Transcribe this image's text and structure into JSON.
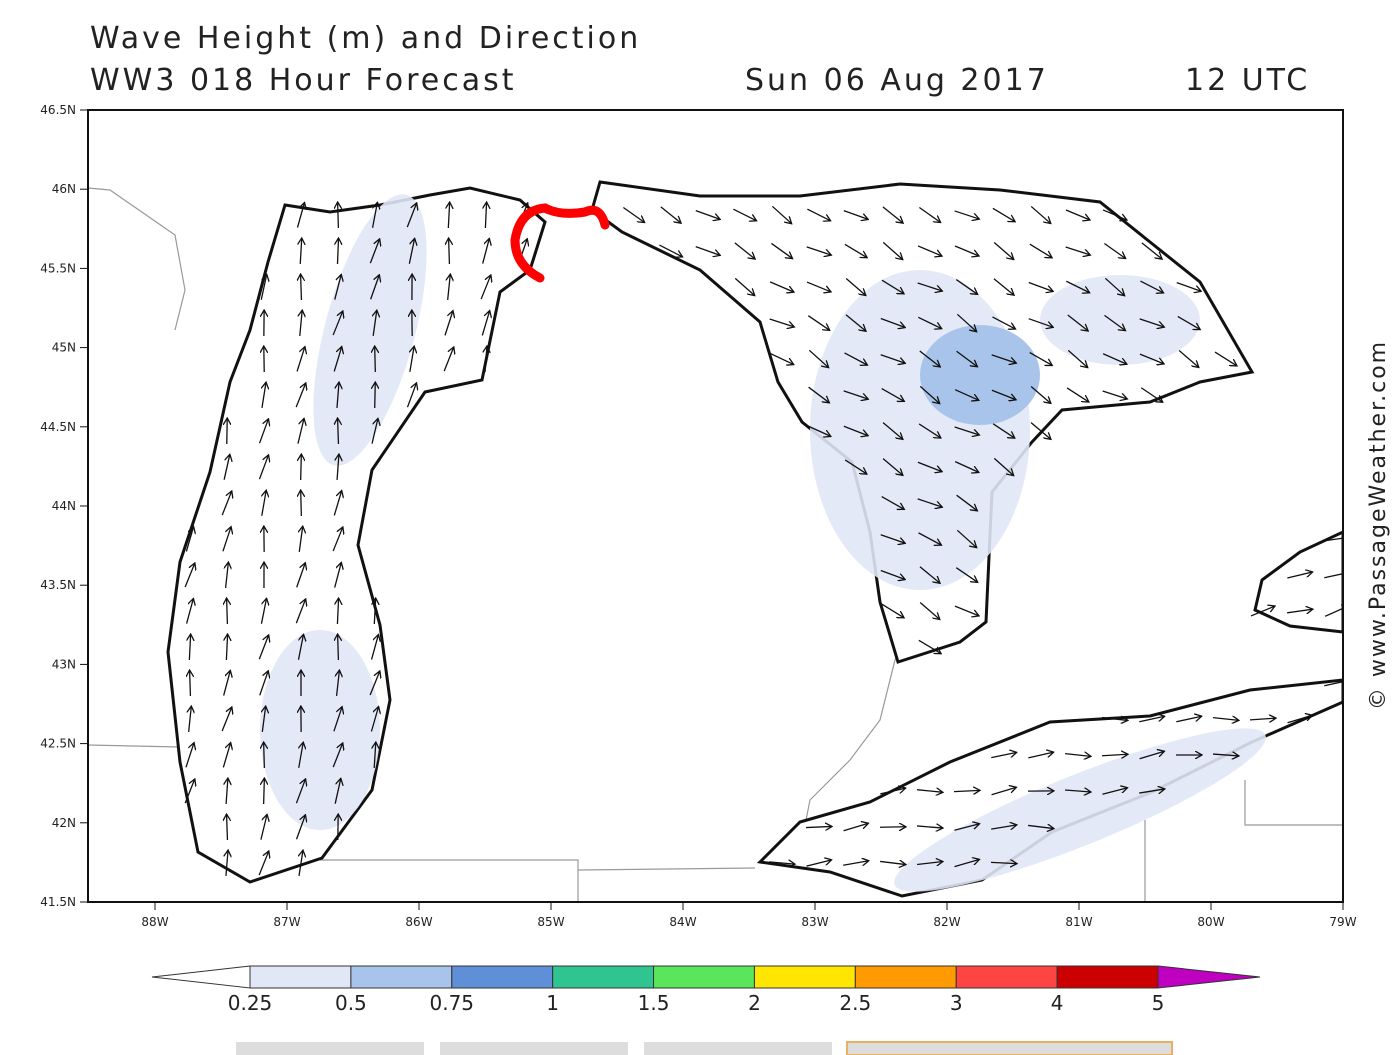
{
  "header": {
    "title": "Wave Height (m) and Direction",
    "model": "WW3 018 Hour Forecast",
    "date": "Sun 06 Aug 2017",
    "time": "12 UTC"
  },
  "map": {
    "lat_labels": [
      "46.5N",
      "46N",
      "45.5N",
      "45N",
      "44.5N",
      "44N",
      "43.5N",
      "43N",
      "42.5N",
      "42N",
      "41.5N"
    ],
    "lon_labels": [
      "88W",
      "87W",
      "86W",
      "85W",
      "84W",
      "83W",
      "82W",
      "81W",
      "80W",
      "79W"
    ]
  },
  "colorbar": {
    "labels": [
      "0.25",
      "0.5",
      "0.75",
      "1",
      "1.5",
      "2",
      "2.5",
      "3",
      "4",
      "5"
    ],
    "colors": [
      "#ffffff",
      "#e1e7f6",
      "#a9c4ea",
      "#5f8fd6",
      "#2fc490",
      "#5ae65a",
      "#ffe600",
      "#ff9a00",
      "#ff4444",
      "#cc0000",
      "#c000c0"
    ]
  },
  "credit": "© www.PassageWeather.com"
}
